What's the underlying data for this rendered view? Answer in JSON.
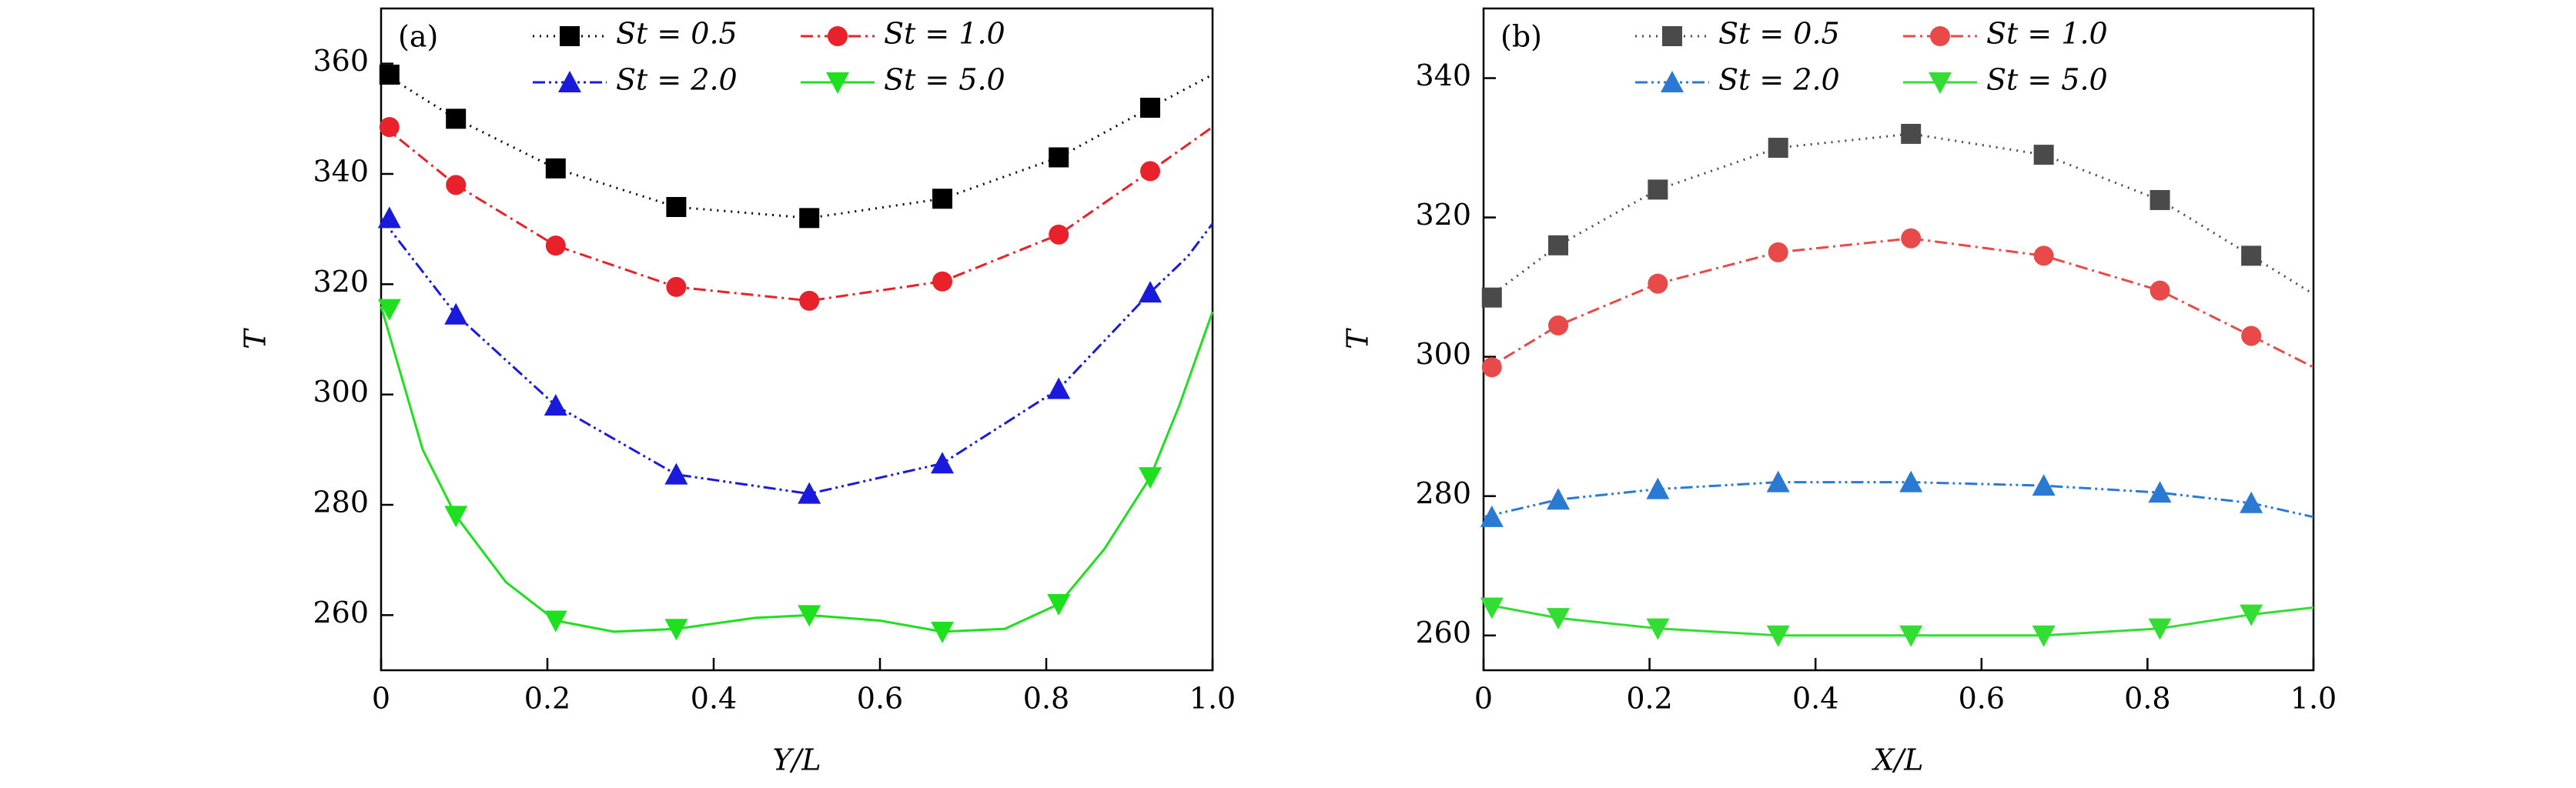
{
  "chart_data": [
    {
      "type": "line",
      "panel_label": "(a)",
      "xlabel": "Y/L",
      "ylabel": "T",
      "xlim": [
        0,
        1
      ],
      "ylim": [
        250,
        370
      ],
      "xticks": [
        0,
        0.2,
        0.4,
        0.6,
        0.8,
        {
          "value": 1,
          "label": "1.0"
        }
      ],
      "yticks": [
        260,
        280,
        300,
        320,
        340,
        360
      ],
      "series": [
        {
          "name": "St = 0.5",
          "color": "#000000",
          "marker": "square",
          "dash": "2 7",
          "x": [
            0.01,
            0.09,
            0.21,
            0.355,
            0.515,
            0.675,
            0.815,
            0.925
          ],
          "values": [
            358,
            350,
            341,
            334,
            332,
            335.5,
            343,
            352
          ],
          "curve": {
            "x": [
              0,
              0.09,
              0.21,
              0.355,
              0.515,
              0.675,
              0.815,
              0.925,
              1
            ],
            "values": [
              358.5,
              350,
              341,
              334,
              332,
              335.5,
              343,
              352,
              358
            ]
          }
        },
        {
          "name": "St = 1.0",
          "color": "#e8212a",
          "marker": "circle",
          "dash": "16 6 3 6",
          "x": [
            0.01,
            0.09,
            0.21,
            0.355,
            0.515,
            0.675,
            0.815,
            0.925
          ],
          "values": [
            348.5,
            338,
            327,
            319.5,
            317,
            320.5,
            329,
            340.5
          ],
          "curve": {
            "x": [
              0,
              0.09,
              0.21,
              0.355,
              0.515,
              0.675,
              0.815,
              0.925,
              1
            ],
            "values": [
              349,
              338,
              327,
              319.5,
              317,
              320.5,
              329,
              340.5,
              348.5
            ]
          }
        },
        {
          "name": "St = 2.0",
          "color": "#1a1adc",
          "marker": "triangle-up",
          "dash": "16 5 3 5 3 5",
          "x": [
            0.01,
            0.09,
            0.21,
            0.355,
            0.515,
            0.675,
            0.815,
            0.925
          ],
          "values": [
            332,
            314.5,
            298,
            285.5,
            282,
            287.5,
            301,
            318.5
          ],
          "curve": {
            "x": [
              0,
              0.09,
              0.21,
              0.355,
              0.515,
              0.675,
              0.815,
              0.925,
              0.97,
              1
            ],
            "values": [
              332,
              314.5,
              298,
              285.5,
              282,
              287.5,
              301,
              318.5,
              325,
              331
            ]
          }
        },
        {
          "name": "St = 5.0",
          "color": "#1fe01f",
          "marker": "triangle-down",
          "dash": "none",
          "x": [
            0.01,
            0.09,
            0.21,
            0.355,
            0.515,
            0.675,
            0.815,
            0.925
          ],
          "values": [
            315.5,
            278,
            259,
            257.5,
            260,
            257,
            262,
            285
          ],
          "curve": {
            "x": [
              0,
              0.05,
              0.09,
              0.15,
              0.21,
              0.28,
              0.355,
              0.45,
              0.515,
              0.6,
              0.675,
              0.75,
              0.815,
              0.87,
              0.925,
              0.96,
              1
            ],
            "values": [
              316,
              290,
              278,
              266,
              259,
              257,
              257.5,
              259.5,
              260,
              259,
              257,
              257.5,
              262,
              272,
              285,
              298,
              315
            ]
          }
        }
      ]
    },
    {
      "type": "line",
      "panel_label": "(b)",
      "xlabel": "X/L",
      "ylabel": "T",
      "xlim": [
        0,
        1
      ],
      "ylim": [
        255,
        350
      ],
      "xticks": [
        0,
        0.2,
        0.4,
        0.6,
        0.8,
        {
          "value": 1,
          "label": "1.0"
        }
      ],
      "yticks": [
        260,
        280,
        300,
        320,
        340
      ],
      "series": [
        {
          "name": "St = 0.5",
          "color": "#4a4a4a",
          "marker": "square",
          "dash": "2 7",
          "x": [
            0.01,
            0.09,
            0.21,
            0.355,
            0.515,
            0.675,
            0.815,
            0.925
          ],
          "values": [
            308.5,
            316,
            324,
            330,
            332,
            329,
            322.5,
            314.5
          ],
          "curve": {
            "x": [
              0,
              0.09,
              0.21,
              0.355,
              0.515,
              0.675,
              0.815,
              0.925,
              1
            ],
            "values": [
              308,
              316,
              324,
              330,
              332,
              329,
              322.5,
              314.5,
              309
            ]
          }
        },
        {
          "name": "St = 1.0",
          "color": "#e84a4a",
          "marker": "circle",
          "dash": "16 6 3 6",
          "x": [
            0.01,
            0.09,
            0.21,
            0.355,
            0.515,
            0.675,
            0.815,
            0.925
          ],
          "values": [
            298.5,
            304.5,
            310.5,
            315,
            317,
            314.5,
            309.5,
            303
          ],
          "curve": {
            "x": [
              0,
              0.09,
              0.21,
              0.355,
              0.515,
              0.675,
              0.815,
              0.925,
              1
            ],
            "values": [
              298,
              304.5,
              310.5,
              315,
              317,
              314.5,
              309.5,
              303,
              298.5
            ]
          }
        },
        {
          "name": "St = 2.0",
          "color": "#2a7ad4",
          "marker": "triangle-up",
          "dash": "16 5 3 5 3 5",
          "x": [
            0.01,
            0.09,
            0.21,
            0.355,
            0.515,
            0.675,
            0.815,
            0.925
          ],
          "values": [
            277,
            279.5,
            281,
            282,
            282,
            281.5,
            280.5,
            279
          ],
          "curve": {
            "x": [
              0,
              0.09,
              0.21,
              0.355,
              0.515,
              0.675,
              0.815,
              0.925,
              1
            ],
            "values": [
              277,
              279.5,
              281,
              282,
              282,
              281.5,
              280.5,
              279,
              277
            ]
          }
        },
        {
          "name": "St = 5.0",
          "color": "#33dd33",
          "marker": "triangle-down",
          "dash": "none",
          "x": [
            0.01,
            0.09,
            0.21,
            0.355,
            0.515,
            0.675,
            0.815,
            0.925
          ],
          "values": [
            264,
            262.5,
            261,
            260,
            260,
            260,
            261,
            263
          ],
          "curve": {
            "x": [
              0,
              0.09,
              0.21,
              0.355,
              0.515,
              0.675,
              0.815,
              0.925,
              1
            ],
            "values": [
              264.5,
              262.5,
              261,
              260,
              260,
              260,
              261,
              263,
              264
            ]
          }
        }
      ]
    }
  ]
}
